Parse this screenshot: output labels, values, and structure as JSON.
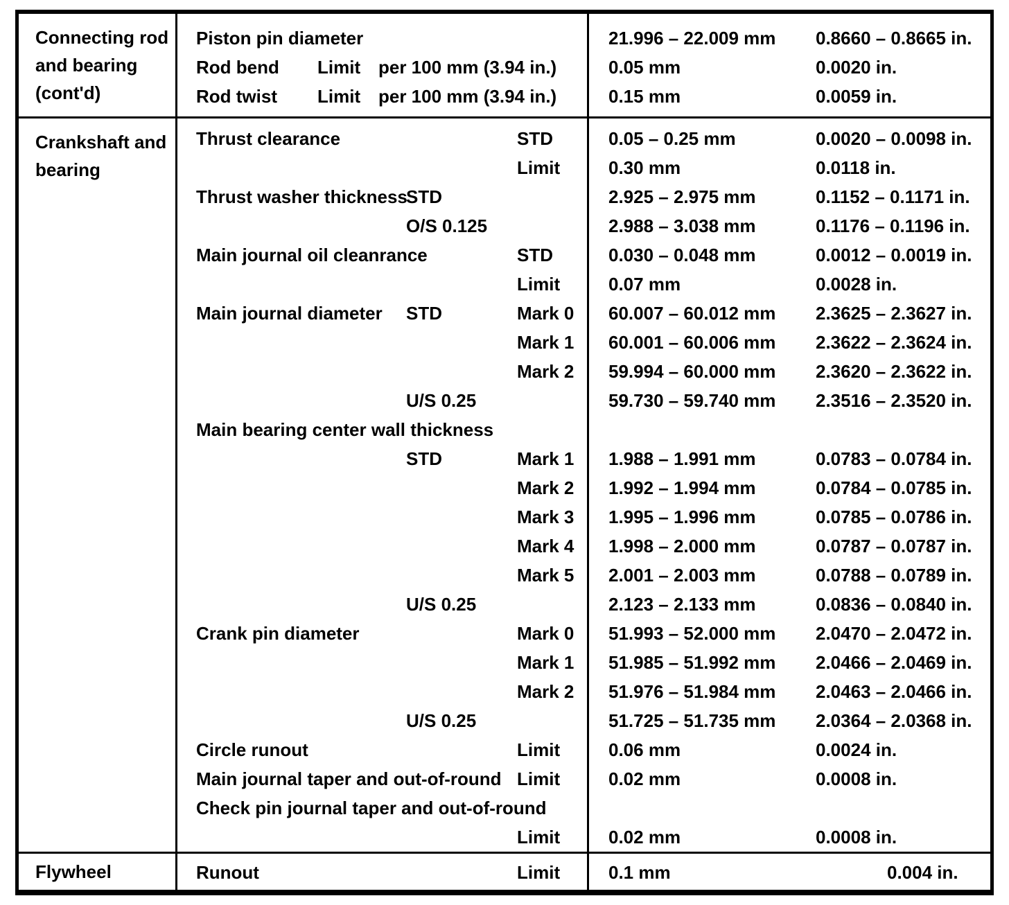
{
  "table": {
    "sections": [
      {
        "label_lines": [
          "Connecting rod",
          "and bearing",
          "(cont'd)"
        ],
        "rows": [
          {
            "item": "Piston pin diameter",
            "qual1": "",
            "qual2": "",
            "mm": "21.996 – 22.009 mm",
            "in": "0.8660 – 0.8665 in."
          },
          {
            "item": "Rod bend",
            "qual1": "Limit",
            "qual2": "per 100 mm (3.94 in.)",
            "mm": "0.05 mm",
            "in": "0.0020 in."
          },
          {
            "item": "Rod twist",
            "qual1": "Limit",
            "qual2": "per 100 mm (3.94 in.)",
            "mm": "0.15 mm",
            "in": "0.0059 in."
          }
        ]
      },
      {
        "label_lines": [
          "Crankshaft and",
          "bearing"
        ],
        "rows": [
          {
            "item": "Thrust clearance",
            "qual1": "",
            "qual2": "STD",
            "mm": "0.05 – 0.25 mm",
            "in": "0.0020 – 0.0098 in."
          },
          {
            "item": "",
            "qual1": "",
            "qual2": "Limit",
            "mm": "0.30 mm",
            "in": "0.0118 in."
          },
          {
            "item": "Thrust washer thickness",
            "qual1": "STD",
            "qual2": "",
            "mm": "2.925 – 2.975 mm",
            "in": "0.1152 – 0.1171 in."
          },
          {
            "item": "",
            "qual1": "O/S 0.125",
            "qual2": "",
            "mm": "2.988 – 3.038 mm",
            "in": "0.1176 – 0.1196 in."
          },
          {
            "item": "Main journal oil cleanrance",
            "qual1": "",
            "qual2": "STD",
            "mm": "0.030 – 0.048 mm",
            "in": "0.0012 – 0.0019 in."
          },
          {
            "item": "",
            "qual1": "",
            "qual2": "Limit",
            "mm": "0.07 mm",
            "in": "0.0028 in."
          },
          {
            "item": "Main journal diameter",
            "qual1": "STD",
            "qual2": "Mark 0",
            "mm": "60.007 – 60.012 mm",
            "in": "2.3625 – 2.3627 in."
          },
          {
            "item": "",
            "qual1": "",
            "qual2": "Mark 1",
            "mm": "60.001 – 60.006 mm",
            "in": "2.3622 – 2.3624 in."
          },
          {
            "item": "",
            "qual1": "",
            "qual2": "Mark 2",
            "mm": "59.994 – 60.000 mm",
            "in": "2.3620 – 2.3622 in."
          },
          {
            "item": "",
            "qual1": "U/S 0.25",
            "qual2": "",
            "mm": "59.730 – 59.740 mm",
            "in": "2.3516 – 2.3520 in."
          },
          {
            "item": "Main bearing center wall thickness",
            "qual1": "",
            "qual2": "",
            "mm": "",
            "in": ""
          },
          {
            "item": "",
            "qual1": "STD",
            "qual2": "Mark 1",
            "mm": "1.988 – 1.991 mm",
            "in": "0.0783 – 0.0784 in."
          },
          {
            "item": "",
            "qual1": "",
            "qual2": "Mark 2",
            "mm": "1.992 – 1.994 mm",
            "in": "0.0784 – 0.0785 in."
          },
          {
            "item": "",
            "qual1": "",
            "qual2": "Mark 3",
            "mm": "1.995 – 1.996 mm",
            "in": "0.0785 – 0.0786 in."
          },
          {
            "item": "",
            "qual1": "",
            "qual2": "Mark 4",
            "mm": "1.998 – 2.000 mm",
            "in": "0.0787 – 0.0787 in."
          },
          {
            "item": "",
            "qual1": "",
            "qual2": "Mark 5",
            "mm": "2.001 – 2.003 mm",
            "in": "0.0788 – 0.0789 in."
          },
          {
            "item": "",
            "qual1": "U/S 0.25",
            "qual2": "",
            "mm": "2.123 – 2.133 mm",
            "in": "0.0836 – 0.0840 in."
          },
          {
            "item": "Crank pin diameter",
            "qual1": "",
            "qual2": "Mark 0",
            "mm": "51.993 – 52.000 mm",
            "in": "2.0470 – 2.0472 in."
          },
          {
            "item": "",
            "qual1": "",
            "qual2": "Mark 1",
            "mm": "51.985 – 51.992 mm",
            "in": "2.0466 – 2.0469 in."
          },
          {
            "item": "",
            "qual1": "",
            "qual2": "Mark 2",
            "mm": "51.976 – 51.984 mm",
            "in": "2.0463 – 2.0466 in."
          },
          {
            "item": "",
            "qual1": "U/S 0.25",
            "qual2": "",
            "mm": "51.725 – 51.735 mm",
            "in": "2.0364 – 2.0368 in."
          },
          {
            "item": "Circle runout",
            "qual1": "",
            "qual2": "Limit",
            "mm": "0.06 mm",
            "in": "0.0024 in."
          },
          {
            "item": "Main journal taper and out-of-round",
            "qual1": "",
            "qual2": "Limit",
            "mm": "0.02 mm",
            "in": "0.0008 in."
          },
          {
            "item": "Check pin journal taper and out-of-round",
            "qual1": "",
            "qual2": "",
            "mm": "",
            "in": ""
          },
          {
            "item": "",
            "qual1": "",
            "qual2": "Limit",
            "mm": "0.02 mm",
            "in": "0.0008 in."
          }
        ]
      },
      {
        "label_lines": [
          "Flywheel"
        ],
        "rows": [
          {
            "item": "Runout",
            "qual1": "",
            "qual2": "Limit",
            "mm": "0.1 mm",
            "in": "0.004 in."
          }
        ]
      }
    ]
  }
}
